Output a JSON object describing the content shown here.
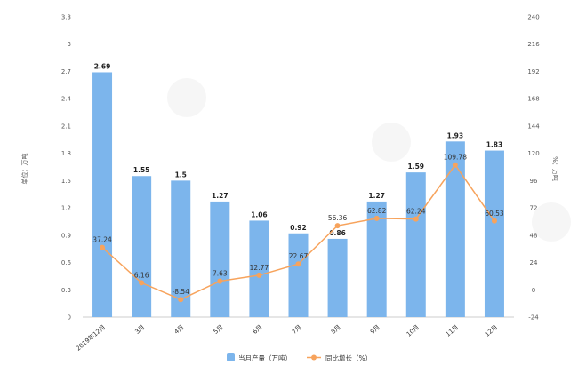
{
  "chart_data": {
    "type": "bar",
    "categories": [
      "2019年12月",
      "3月",
      "4月",
      "5月",
      "6月",
      "7月",
      "8月",
      "9月",
      "10月",
      "11月",
      "12月"
    ],
    "series": [
      {
        "name": "当月产量（万吨）",
        "type": "bar",
        "axis": "left",
        "values": [
          2.69,
          1.55,
          1.5,
          1.27,
          1.06,
          0.92,
          0.86,
          1.27,
          1.59,
          1.93,
          1.83
        ],
        "labels": [
          "2.69",
          "1.55",
          "1.5",
          "1.27",
          "1.06",
          "0.92",
          "0.86",
          "1.27",
          "1.59",
          "1.93",
          "1.83"
        ],
        "color": "#7cb5ec"
      },
      {
        "name": "同比增长（%）",
        "type": "line",
        "axis": "right",
        "values": [
          37.24,
          6.16,
          -8.54,
          7.63,
          12.77,
          22.67,
          56.36,
          62.82,
          62.24,
          109.78,
          60.53
        ],
        "labels": [
          "37.24",
          "6.16",
          "-8.54",
          "7.63",
          "12.77",
          "22.67",
          "56.36",
          "62.82",
          "62.24",
          "109.78",
          "60.53"
        ],
        "color": "#f7a35c"
      }
    ],
    "y_left": {
      "label": "单位：万吨",
      "ylim": [
        0,
        3.3
      ],
      "ticks": [
        "0",
        "0.3",
        "0.6",
        "0.9",
        "1.2",
        "1.5",
        "1.8",
        "2.1",
        "2.4",
        "2.7",
        "3",
        "3.3"
      ]
    },
    "y_right": {
      "label": "%：万吨",
      "ylim": [
        -24,
        240
      ],
      "ticks": [
        "-24",
        "0",
        "24",
        "48",
        "72",
        "96",
        "120",
        "144",
        "168",
        "192",
        "216",
        "240"
      ]
    },
    "grid": false,
    "legend_position": "bottom-center"
  }
}
